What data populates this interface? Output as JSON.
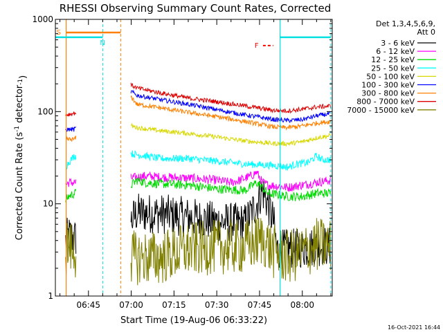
{
  "chart_data": {
    "type": "line",
    "title": "RHESSI Observing Summary Count Rates, Corrected",
    "xlabel": "Start Time (19-Aug-06 06:33:22)",
    "ylabel": "Corrected Count Rate (s",
    "ylabel_sup": "-1",
    "ylabel_mid": " detector",
    "ylabel_end": ")",
    "x_range_min": [
      33.4,
      130.5
    ],
    "x_ticks": [
      {
        "t": 45,
        "label": "06:45"
      },
      {
        "t": 60,
        "label": "07:00"
      },
      {
        "t": 75,
        "label": "07:15"
      },
      {
        "t": 90,
        "label": "07:30"
      },
      {
        "t": 105,
        "label": "07:45"
      },
      {
        "t": 120,
        "label": "08:00"
      }
    ],
    "y_scale": "log",
    "ylim": [
      1,
      1000
    ],
    "y_ticks": [
      {
        "v": 1,
        "label": "1"
      },
      {
        "v": 10,
        "label": "10"
      },
      {
        "v": 100,
        "label": "100"
      },
      {
        "v": 1000,
        "label": "1000"
      }
    ],
    "legend_header": [
      "Det 1,3,4,5,6,9,",
      "Att 0"
    ],
    "legend_position": "right",
    "series": [
      {
        "name": "3 - 6 keV",
        "color": "#000000",
        "noise": 0.22,
        "points": [
          [
            37,
            3.9
          ],
          [
            38,
            4.6
          ],
          [
            40,
            4.2
          ],
          [
            60,
            6.5
          ],
          [
            62,
            8.0
          ],
          [
            70,
            7.8
          ],
          [
            80,
            7.2
          ],
          [
            90,
            6.4
          ],
          [
            100,
            6.2
          ],
          [
            104,
            10
          ],
          [
            106,
            14
          ],
          [
            108,
            10
          ],
          [
            110,
            6.2
          ],
          [
            111,
            3.2
          ],
          [
            120,
            3.3
          ],
          [
            128,
            3.5
          ],
          [
            130,
            3.4
          ]
        ]
      },
      {
        "name": "6 - 12 keV",
        "color": "#ff00ff",
        "noise": 0.05,
        "points": [
          [
            37,
            16
          ],
          [
            38,
            17
          ],
          [
            40,
            17
          ],
          [
            60,
            19
          ],
          [
            65,
            20
          ],
          [
            70,
            19.5
          ],
          [
            80,
            19
          ],
          [
            90,
            18
          ],
          [
            95,
            17
          ],
          [
            98,
            18
          ],
          [
            102,
            20
          ],
          [
            104,
            22
          ],
          [
            106,
            17
          ],
          [
            108,
            16
          ],
          [
            115,
            15
          ],
          [
            120,
            16
          ],
          [
            125,
            17
          ],
          [
            130,
            18
          ]
        ]
      },
      {
        "name": "12 - 25 keV",
        "color": "#00dd00",
        "noise": 0.05,
        "points": [
          [
            37,
            11
          ],
          [
            38,
            12
          ],
          [
            40,
            13
          ],
          [
            60,
            16
          ],
          [
            62,
            18
          ],
          [
            65,
            17
          ],
          [
            70,
            16.5
          ],
          [
            80,
            16
          ],
          [
            90,
            14.5
          ],
          [
            100,
            14
          ],
          [
            104,
            17
          ],
          [
            106,
            15
          ],
          [
            108,
            13
          ],
          [
            115,
            12
          ],
          [
            120,
            12
          ],
          [
            125,
            13
          ],
          [
            130,
            13
          ]
        ]
      },
      {
        "name": "25 - 50 keV",
        "color": "#00ffff",
        "noise": 0.04,
        "points": [
          [
            37,
            25
          ],
          [
            38,
            28
          ],
          [
            40,
            33
          ],
          [
            60,
            35
          ],
          [
            65,
            33
          ],
          [
            70,
            31
          ],
          [
            80,
            31
          ],
          [
            90,
            29
          ],
          [
            100,
            27
          ],
          [
            110,
            26
          ],
          [
            115,
            25
          ],
          [
            118,
            27
          ],
          [
            122,
            28
          ],
          [
            125,
            33
          ],
          [
            127,
            30
          ],
          [
            130,
            30
          ]
        ]
      },
      {
        "name": "50 - 100 keV",
        "color": "#d8d800",
        "noise": 0.025,
        "points": [
          [
            60,
            70
          ],
          [
            62,
            67
          ],
          [
            70,
            62
          ],
          [
            80,
            58
          ],
          [
            90,
            53
          ],
          [
            100,
            48
          ],
          [
            110,
            45
          ],
          [
            115,
            45
          ],
          [
            120,
            47
          ],
          [
            125,
            52
          ],
          [
            130,
            55
          ]
        ]
      },
      {
        "name": "100 - 300 keV",
        "color": "#0000ff",
        "noise": 0.025,
        "points": [
          [
            37,
            64
          ],
          [
            40,
            64
          ],
          [
            60,
            165
          ],
          [
            62,
            150
          ],
          [
            70,
            135
          ],
          [
            80,
            120
          ],
          [
            90,
            105
          ],
          [
            100,
            92
          ],
          [
            110,
            82
          ],
          [
            115,
            80
          ],
          [
            120,
            82
          ],
          [
            125,
            90
          ],
          [
            130,
            95
          ]
        ]
      },
      {
        "name": "300 - 800 keV",
        "color": "#ff8000",
        "noise": 0.025,
        "points": [
          [
            37,
            50
          ],
          [
            40,
            50
          ],
          [
            60,
            145
          ],
          [
            62,
            120
          ],
          [
            70,
            110
          ],
          [
            80,
            98
          ],
          [
            90,
            88
          ],
          [
            100,
            78
          ],
          [
            110,
            68
          ],
          [
            115,
            67
          ],
          [
            120,
            70
          ],
          [
            125,
            75
          ],
          [
            130,
            78
          ]
        ]
      },
      {
        "name": "800 - 7000 keV",
        "color": "#dd0000",
        "noise": 0.025,
        "points": [
          [
            37,
            92
          ],
          [
            40,
            96
          ],
          [
            60,
            195
          ],
          [
            62,
            180
          ],
          [
            70,
            160
          ],
          [
            80,
            140
          ],
          [
            90,
            128
          ],
          [
            100,
            115
          ],
          [
            110,
            103
          ],
          [
            115,
            102
          ],
          [
            120,
            106
          ],
          [
            125,
            112
          ],
          [
            130,
            115
          ]
        ]
      },
      {
        "name": "7000 - 15000 keV",
        "color": "#808000",
        "noise": 0.3,
        "points": [
          [
            37,
            3.2
          ],
          [
            38,
            3.6
          ],
          [
            40,
            3.0
          ],
          [
            60,
            2.6
          ],
          [
            70,
            2.6
          ],
          [
            80,
            3.2
          ],
          [
            90,
            3.4
          ],
          [
            100,
            3.4
          ],
          [
            106,
            4.2
          ],
          [
            110,
            3.0
          ],
          [
            115,
            2.6
          ],
          [
            120,
            3.0
          ],
          [
            125,
            3.6
          ],
          [
            130,
            3.5
          ]
        ]
      }
    ],
    "annotations": {
      "saa_label": "S",
      "night_label": "N",
      "flare_label": "F",
      "saa_interval": [
        37.2,
        56.3
      ],
      "night_intervals": [
        [
          33.4,
          50.0
        ],
        [
          112.2,
          130.0
        ]
      ],
      "flare_interval": [
        106.2,
        109.8
      ],
      "saa_level": 720,
      "night_level": 640,
      "flare_level": 520
    },
    "timestamp": "16-Oct-2021 16:44"
  }
}
